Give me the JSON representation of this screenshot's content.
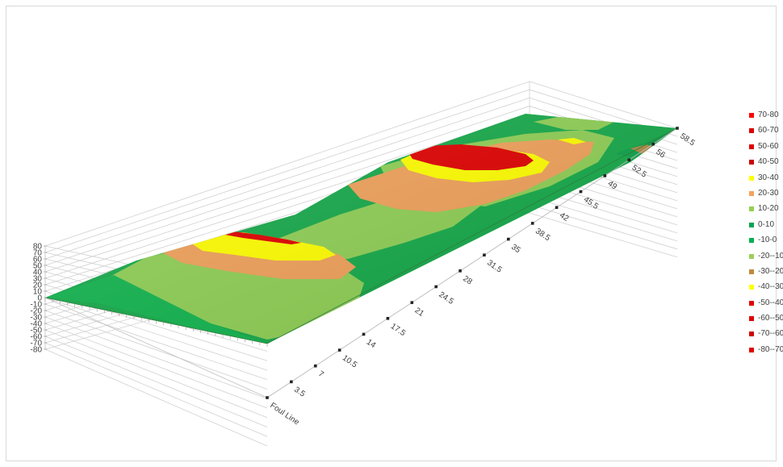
{
  "chart_data": {
    "type": "surface",
    "title": "",
    "z_axis": {
      "ticks": [
        "80",
        "70",
        "60",
        "50",
        "40",
        "30",
        "20",
        "10",
        "0",
        "-10",
        "-20",
        "-30",
        "-40",
        "-50",
        "-60",
        "-70",
        "-80"
      ],
      "range": [
        -80,
        80
      ]
    },
    "depth_axis": {
      "ticks": [
        "Foul Line",
        "3.5",
        "7",
        "10.5",
        "14",
        "17.5",
        "21",
        "24.5",
        "28",
        "31.5",
        "35",
        "38.5",
        "42",
        "45.5",
        "49",
        "52.5",
        "56",
        "58.5"
      ]
    },
    "legend": {
      "placement": "right",
      "entries": [
        {
          "label": "70-80",
          "color": "#ff0000"
        },
        {
          "label": "60-70",
          "color": "#d90000"
        },
        {
          "label": "50-60",
          "color": "#e00000"
        },
        {
          "label": "40-50",
          "color": "#cc0000"
        },
        {
          "label": "30-40",
          "color": "#ffff00"
        },
        {
          "label": "20-30",
          "color": "#f4a35c"
        },
        {
          "label": "10-20",
          "color": "#92d050"
        },
        {
          "label": "0-10",
          "color": "#00a550"
        },
        {
          "label": "-10-0",
          "color": "#00b050"
        },
        {
          "label": "-20--10",
          "color": "#9bcf5a"
        },
        {
          "label": "-30--20",
          "color": "#c08a3e"
        },
        {
          "label": "-40--30",
          "color": "#ffff00"
        },
        {
          "label": "-50--40",
          "color": "#e00000"
        },
        {
          "label": "-60--50",
          "color": "#e00000"
        },
        {
          "label": "-70--60",
          "color": "#d00000"
        },
        {
          "label": "-80--70",
          "color": "#e00000"
        }
      ]
    }
  }
}
